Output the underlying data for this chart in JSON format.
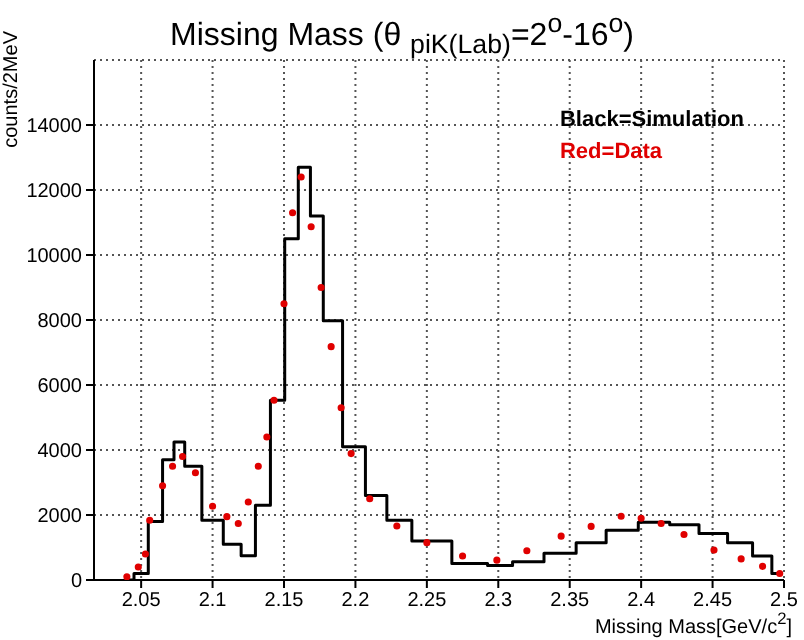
{
  "chart_data": {
    "type": "step",
    "title": "Missing Mass (θ $_{piK(Lab)}$=2$^{o}$-16$^{o}$)",
    "xlabel": "Missing Mass[GeV/c$^{2}$]",
    "ylabel": "counts/2MeV",
    "xlim": [
      2.017,
      2.5
    ],
    "xticks": [
      2.05,
      2.1,
      2.15,
      2.2,
      2.25,
      2.3,
      2.35,
      2.4,
      2.45,
      2.5
    ],
    "ylim": [
      0,
      16000
    ],
    "yticks": [
      0,
      2000,
      4000,
      6000,
      8000,
      10000,
      12000,
      14000
    ],
    "grid": true,
    "legend": "top right",
    "series": [
      {
        "name": "Black=Simulation",
        "color": "#000000",
        "x": [
          2.04,
          2.05,
          2.06,
          2.07,
          2.076,
          2.085,
          2.1,
          2.115,
          2.125,
          2.135,
          2.146,
          2.155,
          2.165,
          2.172,
          2.183,
          2.199,
          2.215,
          2.229,
          2.25,
          2.285,
          2.3,
          2.32,
          2.344,
          2.365,
          2.386,
          2.41,
          2.43,
          2.451,
          2.47,
          2.486,
          2.497
        ],
        "values": [
          0,
          200,
          1800,
          3700,
          4250,
          3500,
          1840,
          1100,
          750,
          2300,
          5530,
          10500,
          12700,
          11200,
          7980,
          4100,
          2600,
          1840,
          1200,
          510,
          450,
          560,
          820,
          1150,
          1530,
          1780,
          1700,
          1430,
          1150,
          740,
          200
        ]
      },
      {
        "name": "Red=Data",
        "type": "scatter",
        "marker": "circle",
        "color": "#e00000",
        "x": [
          2.04,
          2.048,
          2.053,
          2.056,
          2.065,
          2.072,
          2.079,
          2.088,
          2.1,
          2.11,
          2.118,
          2.125,
          2.132,
          2.138,
          2.143,
          2.15,
          2.156,
          2.162,
          2.169,
          2.176,
          2.183,
          2.19,
          2.197,
          2.21,
          2.229,
          2.25,
          2.275,
          2.299,
          2.32,
          2.344,
          2.365,
          2.386,
          2.4,
          2.414,
          2.43,
          2.451,
          2.47,
          2.485,
          2.497
        ],
        "values": [
          100,
          400,
          800,
          1840,
          2900,
          3500,
          3800,
          3300,
          2270,
          1950,
          1740,
          2400,
          3500,
          4400,
          5530,
          8500,
          11300,
          12400,
          10870,
          9000,
          7180,
          5300,
          3890,
          2500,
          1660,
          1150,
          740,
          610,
          900,
          1350,
          1650,
          1960,
          1900,
          1740,
          1400,
          920,
          650,
          420,
          200
        ]
      }
    ]
  }
}
